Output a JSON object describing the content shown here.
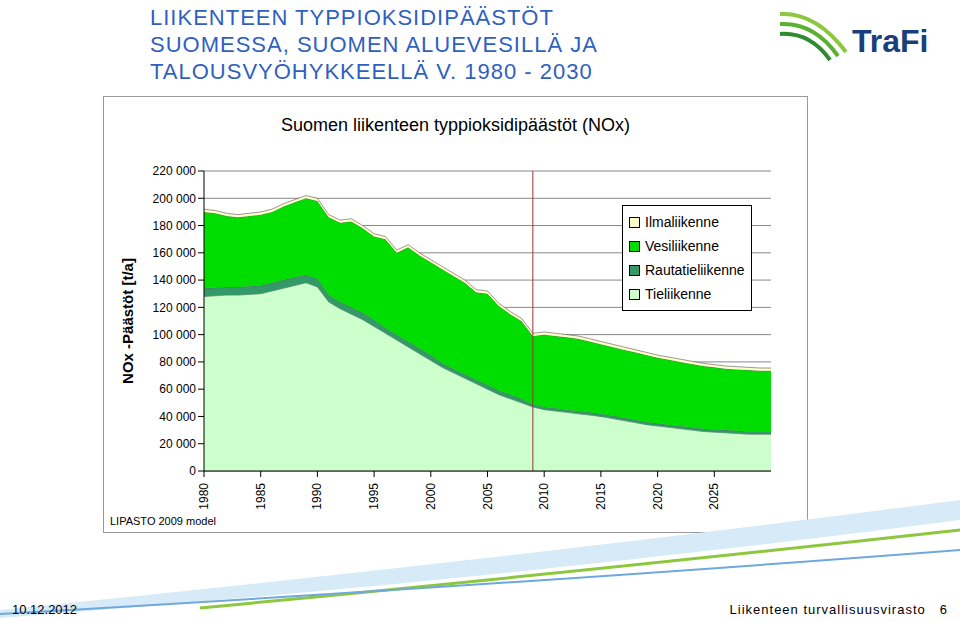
{
  "header_lines": [
    "LIIKENTEEN TYPPIOKSIDIPÄÄSTÖT",
    "SUOMESSA, SUOMEN ALUEVESILLÄ JA",
    "TALOUSVYÖHYKKEELLÄ V. 1980 - 2030"
  ],
  "logo": "TraFi",
  "footer": {
    "date": "10.12.2012",
    "organization": "Liikenteen turvallisuusvirasto",
    "page": "6"
  },
  "chart_data": {
    "type": "area",
    "title": "Suomen liikenteen typpioksidipäästöt (NOx)",
    "y_label": "NOx -Päästöt [t/a]",
    "annotations": [
      {
        "text": "LIPASTO 2009 model"
      }
    ],
    "forecast_start": 2009,
    "stacked": true,
    "grid": true,
    "legend": "upper right",
    "x": [
      1980,
      1981,
      1982,
      1983,
      1984,
      1985,
      1986,
      1987,
      1988,
      1989,
      1990,
      1991,
      1992,
      1993,
      1994,
      1995,
      1996,
      1997,
      1998,
      1999,
      2000,
      2001,
      2002,
      2003,
      2004,
      2005,
      2006,
      2007,
      2008,
      2009,
      2010,
      2011,
      2012,
      2013,
      2014,
      2015,
      2016,
      2017,
      2018,
      2019,
      2020,
      2021,
      2022,
      2023,
      2024,
      2025,
      2026,
      2027,
      2028,
      2029,
      2030
    ],
    "xlim": [
      1980,
      2030
    ],
    "xticks": [
      1980,
      1985,
      1990,
      1995,
      2000,
      2005,
      2010,
      2015,
      2020,
      2025
    ],
    "ylim": [
      0,
      220000
    ],
    "yticks": [
      {
        "value": 0,
        "label": "0"
      },
      {
        "value": 20000,
        "label": "20 000"
      },
      {
        "value": 40000,
        "label": "40 000"
      },
      {
        "value": 60000,
        "label": "60 000"
      },
      {
        "value": 80000,
        "label": "80 000"
      },
      {
        "value": 100000,
        "label": "100 000"
      },
      {
        "value": 120000,
        "label": "120 000"
      },
      {
        "value": 140000,
        "label": "140 000"
      },
      {
        "value": 160000,
        "label": "160 000"
      },
      {
        "value": 180000,
        "label": "180 000"
      },
      {
        "value": 200000,
        "label": "200 000"
      },
      {
        "value": 220000,
        "label": "220 000"
      }
    ],
    "series": [
      {
        "name": "Tieliikenne",
        "color": "#ccffcc",
        "values": [
          128000,
          128500,
          129000,
          129000,
          129500,
          130000,
          132000,
          134000,
          136000,
          138000,
          135000,
          124000,
          119000,
          115000,
          111000,
          106000,
          101000,
          96000,
          91000,
          86000,
          81000,
          76000,
          72000,
          68000,
          64000,
          60000,
          56000,
          53000,
          50000,
          47000,
          45000,
          44000,
          43000,
          42000,
          41000,
          40000,
          38500,
          37000,
          35500,
          34000,
          33000,
          32000,
          31000,
          30000,
          29000,
          28500,
          28000,
          27500,
          27000,
          27000,
          27000
        ]
      },
      {
        "name": "Rautatieliikenne",
        "color": "#339966",
        "values": [
          6000,
          6000,
          6000,
          6000,
          6000,
          6000,
          6000,
          6000,
          6000,
          6000,
          6000,
          5000,
          5000,
          5000,
          5000,
          5000,
          4000,
          4000,
          4000,
          4000,
          4000,
          3000,
          3000,
          3000,
          3000,
          3000,
          3000,
          3000,
          3000,
          2000,
          2000,
          2000,
          2000,
          2000,
          2000,
          2000,
          2000,
          2000,
          2000,
          2000,
          2000,
          2000,
          2000,
          2000,
          2000,
          2000,
          2000,
          2000,
          2000,
          2000,
          2000
        ]
      },
      {
        "name": "Vesiliikenne",
        "color": "#00dd00",
        "values": [
          56000,
          54500,
          52000,
          51000,
          51500,
          52000,
          52000,
          54000,
          55000,
          56000,
          57000,
          57000,
          58000,
          63000,
          62000,
          61000,
          65000,
          60000,
          69000,
          68000,
          68000,
          69000,
          68000,
          67000,
          64000,
          67000,
          62000,
          59000,
          57000,
          50000,
          53000,
          53000,
          53000,
          53000,
          52000,
          51000,
          50500,
          50000,
          49500,
          49000,
          48000,
          47500,
          47000,
          46500,
          46000,
          45500,
          45000,
          45000,
          45000,
          44500,
          44500
        ]
      },
      {
        "name": "Ilmaliikenne",
        "color": "#ffffcc",
        "values": [
          2000,
          2000,
          2000,
          2000,
          2000,
          2000,
          2000,
          2000,
          2000,
          2000,
          2000,
          2000,
          2000,
          2000,
          2000,
          2000,
          2000,
          2000,
          2000,
          2000,
          2000,
          2000,
          2000,
          2000,
          2000,
          2000,
          2000,
          2000,
          2000,
          2000,
          2000,
          2000,
          2000,
          2000,
          2000,
          2000,
          2000,
          2000,
          2000,
          2000,
          2000,
          2000,
          2000,
          2000,
          2000,
          2000,
          2000,
          2000,
          2000,
          2000,
          2000
        ]
      }
    ]
  }
}
